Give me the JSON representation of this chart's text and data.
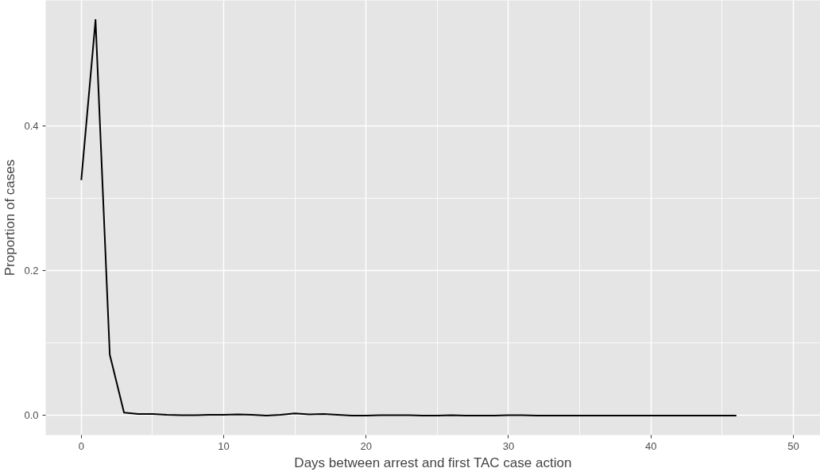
{
  "chart_data": {
    "type": "line",
    "xlabel": "Days between arrest and first TAC case action",
    "ylabel": "Proportion of cases",
    "x": [
      0,
      1,
      2,
      3,
      4,
      5,
      6,
      7,
      8,
      9,
      10,
      11,
      12,
      13,
      14,
      15,
      16,
      17,
      18,
      19,
      20,
      21,
      22,
      23,
      24,
      25,
      26,
      27,
      28,
      29,
      30,
      31,
      32,
      33,
      34,
      35,
      36,
      37,
      38,
      39,
      40,
      41,
      42,
      43,
      44,
      45,
      46
    ],
    "series": [
      {
        "color": "#000000",
        "values": [
          0.325,
          0.546,
          0.084,
          0.004,
          0.002,
          0.002,
          0.001,
          0.0005,
          0.0005,
          0.001,
          0.001,
          0.0015,
          0.001,
          0,
          0.001,
          0.003,
          0.0015,
          0.002,
          0.001,
          0,
          0,
          0.0005,
          0.0005,
          0.0005,
          0,
          0,
          0.0005,
          0,
          0,
          0,
          0.0005,
          0.0005,
          0,
          0,
          0,
          0,
          0,
          0,
          0,
          0,
          0,
          0,
          0,
          0,
          0,
          0,
          0
        ]
      }
    ],
    "xlim": [
      -2.5,
      51.9
    ],
    "ylim": [
      -0.027,
      0.573
    ],
    "xticks": [
      0,
      10,
      20,
      30,
      40,
      50
    ],
    "yticks": [
      {
        "value": 0,
        "label": "0.0"
      },
      {
        "value": 0.2,
        "label": "0.2"
      },
      {
        "value": 0.4,
        "label": "0.4"
      }
    ],
    "grid": true,
    "line_style": "solid",
    "marker": "none"
  }
}
